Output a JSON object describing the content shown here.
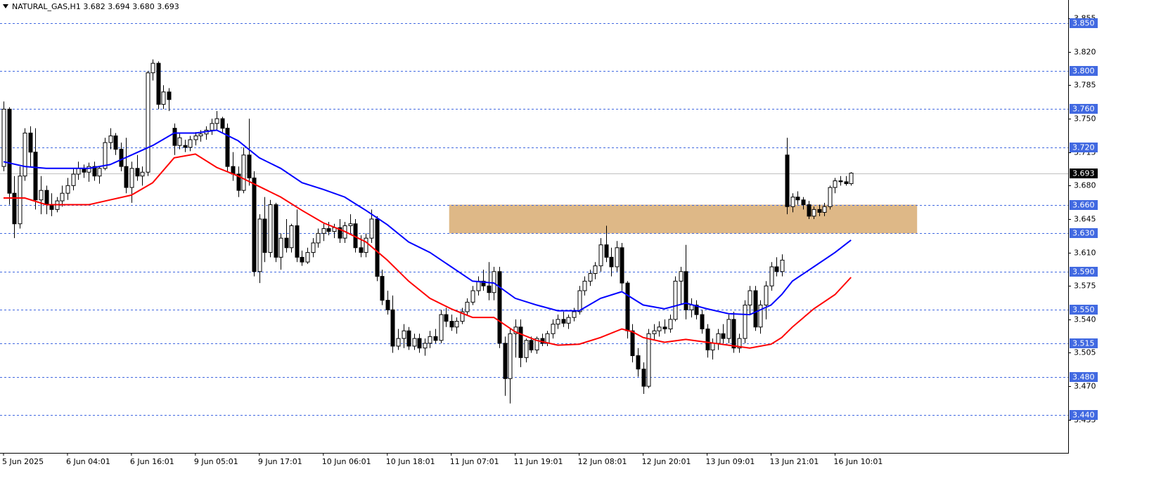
{
  "chart_data": {
    "type": "candlestick",
    "title": "NATURAL_GAS,H1  3.682 3.694 3.680 3.693",
    "categories": [
      "5 Jun 2025",
      null,
      null,
      null,
      null,
      null,
      null,
      null,
      null,
      null,
      null,
      null,
      "6 Jun 04:01",
      null,
      null,
      null,
      null,
      null,
      null,
      null,
      null,
      null,
      null,
      null,
      "6 Jun 16:01",
      null,
      null,
      null,
      null,
      null,
      null,
      null,
      null,
      null,
      null,
      null,
      "9 Jun 05:01",
      null,
      null,
      null,
      null,
      null,
      null,
      null,
      null,
      null,
      null,
      null,
      "9 Jun 17:01",
      null,
      null,
      null,
      null,
      null,
      null,
      null,
      null,
      null,
      null,
      null,
      "10 Jun 06:01",
      null,
      null,
      null,
      null,
      null,
      null,
      null,
      null,
      null,
      null,
      null,
      "10 Jun 18:01",
      null,
      null,
      null,
      null,
      null,
      null,
      null,
      null,
      null,
      null,
      null,
      "11 Jun 07:01",
      null,
      null,
      null,
      null,
      null,
      null,
      null,
      null,
      null,
      null,
      null,
      "11 Jun 19:01",
      null,
      null,
      null,
      null,
      null,
      null,
      null,
      null,
      null,
      null,
      null,
      "12 Jun 08:01",
      null,
      null,
      null,
      null,
      null,
      null,
      null,
      null,
      null,
      null,
      null,
      "12 Jun 20:01",
      null,
      null,
      null,
      null,
      null,
      null,
      null,
      null,
      null,
      null,
      null,
      "13 Jun 09:01",
      null,
      null,
      null,
      null,
      null,
      null,
      null,
      null,
      null,
      null,
      null,
      "13 Jun 21:01",
      null,
      null,
      null,
      null,
      null,
      null,
      null,
      null,
      null,
      null,
      null,
      "16 Jun 10:01",
      null,
      null,
      null
    ],
    "open": [
      3.7,
      3.76,
      3.672,
      3.64,
      3.69,
      3.735,
      3.715,
      3.665,
      3.675,
      3.66,
      3.655,
      3.664,
      3.672,
      3.68,
      3.692,
      3.698,
      3.694,
      3.7,
      3.69,
      3.698,
      3.725,
      3.732,
      3.718,
      3.7,
      3.678,
      3.698,
      3.69,
      3.694,
      3.798,
      3.808,
      3.765,
      3.778,
      3.74,
      3.722,
      3.722,
      3.72,
      3.728,
      3.732,
      3.734,
      3.738,
      3.745,
      3.75,
      3.74,
      3.7,
      3.692,
      3.675,
      3.712,
      3.688,
      3.59,
      3.645,
      3.61,
      3.66,
      3.605,
      3.625,
      3.615,
      3.638,
      3.605,
      3.6,
      3.61,
      3.62,
      3.63,
      3.635,
      3.632,
      3.636,
      3.625,
      3.638,
      3.64,
      3.615,
      3.61,
      3.625,
      3.645,
      3.585,
      3.56,
      3.55,
      3.512,
      3.52,
      3.528,
      3.512,
      3.52,
      3.51,
      3.515,
      3.522,
      3.518,
      3.545,
      3.538,
      3.532,
      3.538,
      3.548,
      3.558,
      3.57,
      3.58,
      3.575,
      3.568,
      3.59,
      3.515,
      3.478,
      3.525,
      3.532,
      3.5,
      3.518,
      3.508,
      3.52,
      3.515,
      3.525,
      3.535,
      3.54,
      3.536,
      3.542,
      3.548,
      3.57,
      3.58,
      3.588,
      3.596,
      3.618,
      3.605,
      3.595,
      3.615,
      3.578,
      3.528,
      3.502,
      3.488,
      3.47,
      3.525,
      3.528,
      3.532,
      3.53,
      3.54,
      3.58,
      3.59,
      3.55,
      3.555,
      3.545,
      3.53,
      3.508,
      3.515,
      3.525,
      3.52,
      3.54,
      3.51,
      3.52,
      3.555,
      3.57,
      3.532,
      3.555,
      3.575,
      3.595,
      3.59,
      3.712,
      3.658,
      3.668,
      3.665,
      3.66,
      3.648,
      3.655,
      3.652,
      3.658,
      3.678,
      3.685,
      3.684,
      3.682
    ],
    "high": [
      3.768,
      3.762,
      3.69,
      3.7,
      3.74,
      3.742,
      3.74,
      3.69,
      3.68,
      3.672,
      3.668,
      3.68,
      3.688,
      3.698,
      3.705,
      3.702,
      3.704,
      3.705,
      3.7,
      3.73,
      3.74,
      3.735,
      3.725,
      3.73,
      3.705,
      3.712,
      3.7,
      3.8,
      3.812,
      3.81,
      3.785,
      3.782,
      3.745,
      3.735,
      3.728,
      3.732,
      3.736,
      3.738,
      3.742,
      3.75,
      3.758,
      3.752,
      3.745,
      3.715,
      3.7,
      3.72,
      3.75,
      3.695,
      3.65,
      3.668,
      3.665,
      3.662,
      3.63,
      3.645,
      3.64,
      3.655,
      3.612,
      3.615,
      3.625,
      3.635,
      3.64,
      3.642,
      3.64,
      3.645,
      3.642,
      3.65,
      3.645,
      3.628,
      3.63,
      3.655,
      3.648,
      3.592,
      3.57,
      3.565,
      3.53,
      3.535,
      3.532,
      3.525,
      3.525,
      3.52,
      3.528,
      3.53,
      3.55,
      3.552,
      3.545,
      3.542,
      3.552,
      3.562,
      3.575,
      3.585,
      3.592,
      3.6,
      3.595,
      3.595,
      3.522,
      3.53,
      3.54,
      3.54,
      3.52,
      3.522,
      3.522,
      3.525,
      3.528,
      3.54,
      3.545,
      3.548,
      3.545,
      3.552,
      3.575,
      3.585,
      3.592,
      3.6,
      3.625,
      3.638,
      3.615,
      3.622,
      3.62,
      3.58,
      3.535,
      3.51,
      3.495,
      3.53,
      3.535,
      3.538,
      3.54,
      3.545,
      3.585,
      3.595,
      3.618,
      3.562,
      3.56,
      3.55,
      3.535,
      3.52,
      3.53,
      3.535,
      3.545,
      3.548,
      3.525,
      3.56,
      3.575,
      3.575,
      3.56,
      3.58,
      3.6,
      3.605,
      3.608,
      3.73,
      3.672,
      3.674,
      3.668,
      3.664,
      3.658,
      3.66,
      3.662,
      3.68,
      3.688,
      3.69,
      3.69,
      3.694
    ],
    "low": [
      3.695,
      3.66,
      3.625,
      3.635,
      3.685,
      3.7,
      3.655,
      3.65,
      3.65,
      3.648,
      3.652,
      3.658,
      3.665,
      3.675,
      3.686,
      3.688,
      3.684,
      3.685,
      3.682,
      3.696,
      3.718,
      3.712,
      3.695,
      3.672,
      3.662,
      3.685,
      3.68,
      3.69,
      3.79,
      3.76,
      3.76,
      3.758,
      3.712,
      3.718,
      3.715,
      3.716,
      3.722,
      3.726,
      3.728,
      3.733,
      3.738,
      3.735,
      3.695,
      3.685,
      3.668,
      3.672,
      3.68,
      3.585,
      3.578,
      3.6,
      3.605,
      3.6,
      3.592,
      3.61,
      3.61,
      3.6,
      3.596,
      3.598,
      3.605,
      3.615,
      3.622,
      3.628,
      3.625,
      3.62,
      3.62,
      3.63,
      3.61,
      3.605,
      3.605,
      3.62,
      3.58,
      3.555,
      3.545,
      3.505,
      3.508,
      3.51,
      3.508,
      3.508,
      3.505,
      3.502,
      3.51,
      3.515,
      3.515,
      3.532,
      3.528,
      3.525,
      3.535,
      3.545,
      3.555,
      3.565,
      3.57,
      3.56,
      3.56,
      3.51,
      3.46,
      3.452,
      3.5,
      3.49,
      3.495,
      3.505,
      3.504,
      3.512,
      3.512,
      3.52,
      3.53,
      3.532,
      3.53,
      3.538,
      3.545,
      3.565,
      3.575,
      3.582,
      3.59,
      3.6,
      3.585,
      3.59,
      3.57,
      3.52,
      3.495,
      3.48,
      3.462,
      3.468,
      3.518,
      3.522,
      3.525,
      3.526,
      3.538,
      3.555,
      3.54,
      3.542,
      3.54,
      3.525,
      3.5,
      3.498,
      3.508,
      3.515,
      3.515,
      3.505,
      3.505,
      3.515,
      3.545,
      3.528,
      3.525,
      3.54,
      3.57,
      3.585,
      3.585,
      3.65,
      3.652,
      3.66,
      3.655,
      3.645,
      3.645,
      3.648,
      3.648,
      3.655,
      3.672,
      3.68,
      3.68,
      3.68
    ],
    "close": [
      3.76,
      3.672,
      3.64,
      3.69,
      3.735,
      3.715,
      3.665,
      3.675,
      3.66,
      3.655,
      3.664,
      3.672,
      3.68,
      3.692,
      3.698,
      3.694,
      3.7,
      3.69,
      3.698,
      3.725,
      3.732,
      3.718,
      3.7,
      3.678,
      3.698,
      3.69,
      3.694,
      3.798,
      3.808,
      3.765,
      3.778,
      3.77,
      3.722,
      3.73,
      3.72,
      3.728,
      3.732,
      3.734,
      3.738,
      3.745,
      3.75,
      3.74,
      3.7,
      3.692,
      3.675,
      3.712,
      3.688,
      3.59,
      3.645,
      3.61,
      3.66,
      3.605,
      3.625,
      3.615,
      3.638,
      3.605,
      3.6,
      3.61,
      3.62,
      3.63,
      3.635,
      3.632,
      3.636,
      3.625,
      3.638,
      3.64,
      3.615,
      3.61,
      3.625,
      3.645,
      3.585,
      3.56,
      3.55,
      3.512,
      3.52,
      3.528,
      3.512,
      3.52,
      3.51,
      3.515,
      3.522,
      3.518,
      3.545,
      3.538,
      3.532,
      3.538,
      3.548,
      3.558,
      3.57,
      3.58,
      3.575,
      3.568,
      3.59,
      3.515,
      3.478,
      3.525,
      3.532,
      3.5,
      3.518,
      3.508,
      3.52,
      3.515,
      3.525,
      3.535,
      3.54,
      3.536,
      3.542,
      3.548,
      3.57,
      3.58,
      3.588,
      3.596,
      3.618,
      3.605,
      3.595,
      3.615,
      3.578,
      3.528,
      3.502,
      3.488,
      3.47,
      3.525,
      3.528,
      3.532,
      3.53,
      3.54,
      3.58,
      3.59,
      3.55,
      3.555,
      3.545,
      3.53,
      3.508,
      3.515,
      3.525,
      3.52,
      3.54,
      3.51,
      3.52,
      3.555,
      3.57,
      3.532,
      3.555,
      3.575,
      3.595,
      3.59,
      3.602,
      3.658,
      3.668,
      3.665,
      3.66,
      3.648,
      3.655,
      3.652,
      3.658,
      3.678,
      3.685,
      3.684,
      3.682,
      3.693
    ],
    "lines": [
      {
        "color": "#0000ff",
        "x": [
          0,
          4,
          8,
          12,
          16,
          20,
          24,
          28,
          32,
          36,
          40,
          44,
          48,
          52,
          56,
          60,
          64,
          68,
          72,
          76,
          80,
          84,
          88,
          92,
          96,
          100,
          104,
          108,
          112,
          116,
          118,
          120,
          124,
          128,
          132,
          136,
          140,
          144,
          146,
          148,
          152,
          156,
          159
        ],
        "values": [
          3.705,
          3.7,
          3.698,
          3.698,
          3.698,
          3.702,
          3.712,
          3.722,
          3.735,
          3.735,
          3.738,
          3.727,
          3.709,
          3.698,
          3.683,
          3.676,
          3.668,
          3.654,
          3.639,
          3.621,
          3.61,
          3.595,
          3.58,
          3.578,
          3.562,
          3.555,
          3.549,
          3.549,
          3.562,
          3.569,
          3.562,
          3.555,
          3.551,
          3.557,
          3.551,
          3.546,
          3.545,
          3.555,
          3.566,
          3.58,
          3.595,
          3.61,
          3.623
        ]
      },
      {
        "color": "#ff0000",
        "x": [
          0,
          4,
          8,
          12,
          16,
          20,
          24,
          28,
          32,
          36,
          40,
          44,
          48,
          52,
          56,
          60,
          64,
          68,
          72,
          76,
          80,
          84,
          88,
          92,
          96,
          100,
          104,
          108,
          112,
          116,
          118,
          120,
          124,
          128,
          132,
          136,
          140,
          144,
          146,
          148,
          152,
          156,
          159
        ],
        "values": [
          3.667,
          3.667,
          3.66,
          3.66,
          3.66,
          3.665,
          3.67,
          3.683,
          3.709,
          3.713,
          3.699,
          3.69,
          3.679,
          3.668,
          3.654,
          3.641,
          3.632,
          3.621,
          3.602,
          3.58,
          3.562,
          3.551,
          3.542,
          3.542,
          3.527,
          3.518,
          3.513,
          3.514,
          3.521,
          3.53,
          3.527,
          3.521,
          3.516,
          3.519,
          3.516,
          3.513,
          3.51,
          3.514,
          3.521,
          3.532,
          3.551,
          3.566,
          3.584
        ]
      }
    ],
    "zone": {
      "from": 3.63,
      "to": 3.66,
      "start": 84,
      "end": 171,
      "color": "#deb887"
    },
    "levels": [
      {
        "value": 3.85,
        "label": "3.850"
      },
      {
        "value": 3.8,
        "label": "3.800"
      },
      {
        "value": 3.76,
        "label": "3.760"
      },
      {
        "value": 3.72,
        "label": "3.720"
      },
      {
        "value": 3.66,
        "label": "3.660"
      },
      {
        "value": 3.63,
        "label": "3.630"
      },
      {
        "value": 3.59,
        "label": "3.590"
      },
      {
        "value": 3.55,
        "label": "3.550"
      },
      {
        "value": 3.515,
        "label": "3.515"
      },
      {
        "value": 3.48,
        "label": "3.480"
      },
      {
        "value": 3.44,
        "label": "3.440"
      }
    ],
    "level_color": "#4169e1",
    "last_price": {
      "value": 3.693,
      "label": "3.693"
    },
    "ylim": [
      3.4003,
      3.8742
    ],
    "yticks": [
      {
        "value": 3.855,
        "label": "3.855"
      },
      {
        "value": 3.82,
        "label": "3.820"
      },
      {
        "value": 3.785,
        "label": "3.785"
      },
      {
        "value": 3.75,
        "label": "3.750"
      },
      {
        "value": 3.715,
        "label": "3.715"
      },
      {
        "value": 3.68,
        "label": "3.680"
      },
      {
        "value": 3.645,
        "label": "3.645"
      },
      {
        "value": 3.61,
        "label": "3.610"
      },
      {
        "value": 3.575,
        "label": "3.575"
      },
      {
        "value": 3.54,
        "label": "3.540"
      },
      {
        "value": 3.505,
        "label": "3.505"
      },
      {
        "value": 3.47,
        "label": "3.470"
      },
      {
        "value": 3.435,
        "label": "3.435"
      }
    ]
  }
}
